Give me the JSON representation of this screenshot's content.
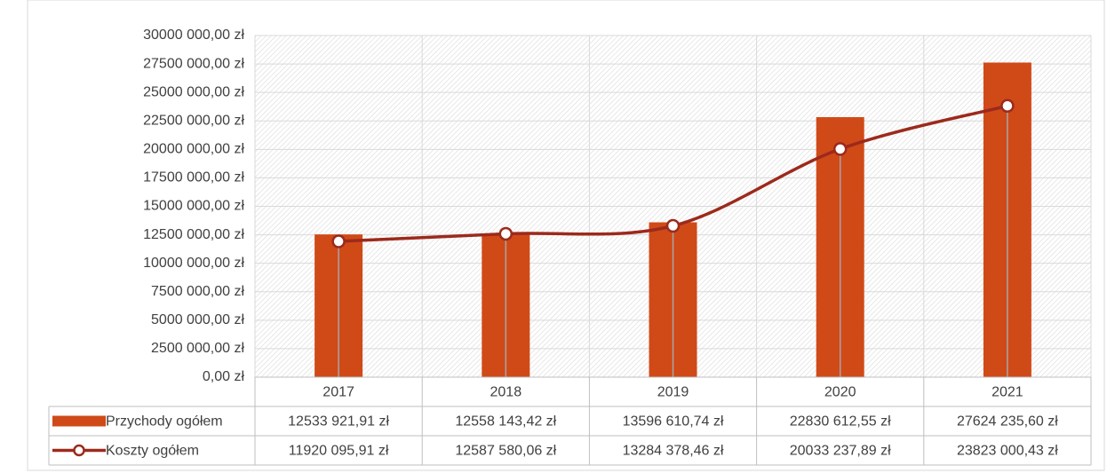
{
  "chart_data": {
    "type": "bar_line",
    "categories": [
      "2017",
      "2018",
      "2019",
      "2020",
      "2021"
    ],
    "series": [
      {
        "name": "Przychody ogółem",
        "type": "bar",
        "color": "#d04a18",
        "values": [
          12533921.91,
          12558143.42,
          13596610.74,
          22830612.55,
          27624235.6
        ],
        "value_labels": [
          "12533 921,91 zł",
          "12558 143,42 zł",
          "13596 610,74 zł",
          "22830 612,55 zł",
          "27624 235,60 zł"
        ]
      },
      {
        "name": "Koszty ogółem",
        "type": "line",
        "color": "#9c2a1c",
        "values": [
          11920095.91,
          12587580.06,
          13284378.46,
          20033237.89,
          23823000.43
        ],
        "value_labels": [
          "11920 095,91 zł",
          "12587 580,06 zł",
          "13284 378,46 zł",
          "20033 237,89 zł",
          "23823 000,43 zł"
        ]
      }
    ],
    "ylim": [
      0,
      30000000
    ],
    "yticks": [
      {
        "value": 0,
        "label": "0,00 zł"
      },
      {
        "value": 2500000,
        "label": "2500 000,00 zł"
      },
      {
        "value": 5000000,
        "label": "5000 000,00 zł"
      },
      {
        "value": 7500000,
        "label": "7500 000,00 zł"
      },
      {
        "value": 10000000,
        "label": "10000 000,00 zł"
      },
      {
        "value": 12500000,
        "label": "12500 000,00 zł"
      },
      {
        "value": 15000000,
        "label": "15000 000,00 zł"
      },
      {
        "value": 17500000,
        "label": "17500 000,00 zł"
      },
      {
        "value": 20000000,
        "label": "20000 000,00 zł"
      },
      {
        "value": 22500000,
        "label": "22500 000,00 zł"
      },
      {
        "value": 25000000,
        "label": "25000 000,00 zł"
      },
      {
        "value": 27500000,
        "label": "27500 000,00 zł"
      },
      {
        "value": 30000000,
        "label": "30000 000,00 zł"
      }
    ],
    "grid": true,
    "data_table": true
  }
}
